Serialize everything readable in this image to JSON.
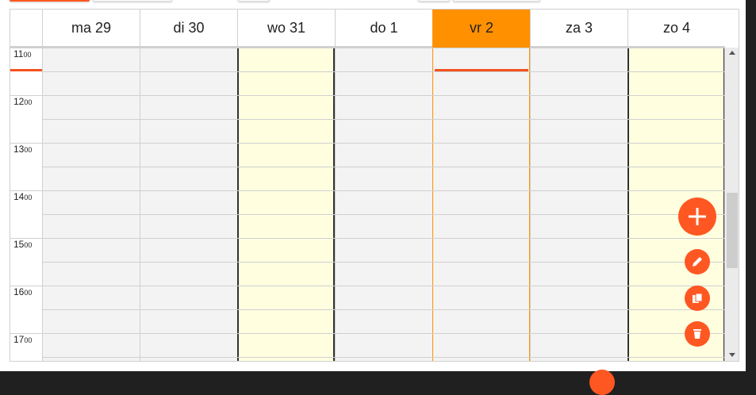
{
  "days": [
    {
      "label": "ma 29",
      "weekend": false,
      "today": false
    },
    {
      "label": "di 30",
      "weekend": false,
      "today": false
    },
    {
      "label": "wo 31",
      "weekend": true,
      "today": false
    },
    {
      "label": "do 1",
      "weekend": false,
      "today": false
    },
    {
      "label": "vr 2",
      "weekend": false,
      "today": true
    },
    {
      "label": "za 3",
      "weekend": false,
      "today": false
    },
    {
      "label": "zo 4",
      "weekend": true,
      "today": false
    }
  ],
  "hours": [
    {
      "h": "11",
      "m": "00"
    },
    {
      "h": "12",
      "m": "00"
    },
    {
      "h": "13",
      "m": "00"
    },
    {
      "h": "14",
      "m": "00"
    },
    {
      "h": "15",
      "m": "00"
    },
    {
      "h": "16",
      "m": "00"
    },
    {
      "h": "17",
      "m": "00"
    }
  ],
  "colors": {
    "accent": "#ff5722",
    "today": "#ff9000",
    "weekend": "#ffffe0"
  },
  "actions": {
    "add": "plus-icon",
    "edit": "pencil-icon",
    "copy": "copy-icon",
    "delete": "trash-icon"
  }
}
